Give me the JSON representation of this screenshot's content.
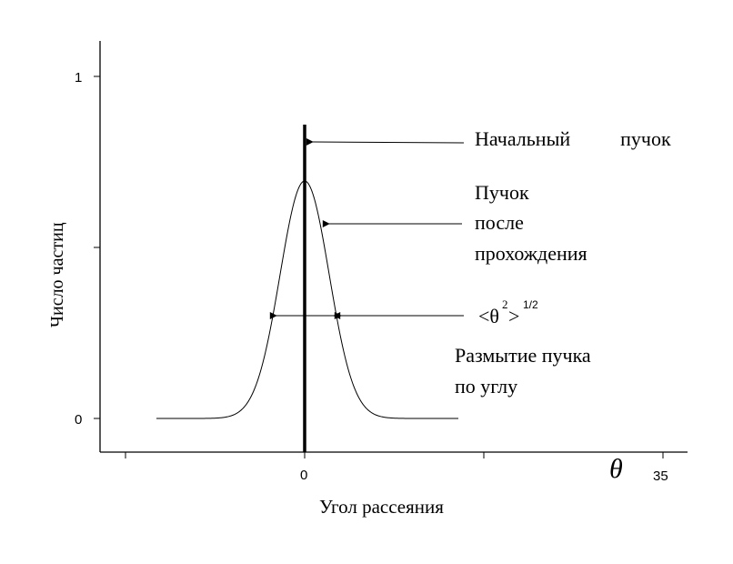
{
  "axes": {
    "ylabel": "Число частиц",
    "xlabel": "Угол рассеяния",
    "y_ticks": [
      "0",
      "1"
    ],
    "x_tick_zero": "0",
    "x_tick_end": "35",
    "x_symbol": "θ"
  },
  "labels": {
    "initial_beam": "Начальный          пучок",
    "after_line1": "Пучок",
    "after_line2": "после",
    "after_line3": "прохождения",
    "width_main": "<θ",
    "width_sup2": "2",
    "width_gt": ">",
    "width_sup12": "1/2",
    "blur_line1": "Размытие пучка",
    "blur_line2": "по углу"
  }
}
